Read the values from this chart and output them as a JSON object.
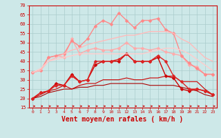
{
  "bg_color": "#cde8e8",
  "grid_color": "#aacccc",
  "xlabel": "Vent moyen/en rafales ( km/h )",
  "xlabel_color": "#cc0000",
  "xlabel_fontsize": 7,
  "xtick_color": "#cc0000",
  "ytick_color": "#cc0000",
  "xlim": [
    -0.5,
    23.5
  ],
  "ylim": [
    15,
    70
  ],
  "yticks": [
    15,
    20,
    25,
    30,
    35,
    40,
    45,
    50,
    55,
    60,
    65,
    70
  ],
  "xticks": [
    0,
    1,
    2,
    3,
    4,
    5,
    6,
    7,
    8,
    9,
    10,
    11,
    12,
    13,
    14,
    15,
    16,
    17,
    18,
    19,
    20,
    21,
    22,
    23
  ],
  "series": [
    {
      "y": [
        20,
        21,
        23,
        24,
        25,
        25,
        26,
        26,
        27,
        27,
        28,
        28,
        28,
        28,
        28,
        27,
        27,
        27,
        27,
        26,
        25,
        24,
        22,
        21
      ],
      "color": "#aa0000",
      "linewidth": 0.8,
      "marker": null,
      "markersize": 0
    },
    {
      "y": [
        20,
        22,
        24,
        25,
        27,
        25,
        27,
        28,
        28,
        30,
        30,
        30,
        31,
        30,
        30,
        31,
        31,
        32,
        32,
        29,
        29,
        29,
        25,
        22
      ],
      "color": "#cc0000",
      "linewidth": 0.8,
      "marker": null,
      "markersize": 0
    },
    {
      "y": [
        20,
        23,
        24,
        28,
        27,
        33,
        29,
        30,
        38,
        40,
        40,
        40,
        44,
        40,
        40,
        40,
        42,
        32,
        31,
        25,
        24,
        25,
        24,
        22
      ],
      "color": "#cc0000",
      "linewidth": 1.0,
      "marker": "D",
      "markersize": 2.5
    },
    {
      "y": [
        20,
        23,
        24,
        27,
        27,
        32,
        29,
        30,
        40,
        40,
        40,
        41,
        44,
        40,
        40,
        40,
        43,
        40,
        32,
        29,
        25,
        25,
        24,
        22
      ],
      "color": "#dd2222",
      "linewidth": 1.0,
      "marker": "D",
      "markersize": 2.5
    },
    {
      "y": [
        34,
        35,
        42,
        43,
        42,
        52,
        44,
        46,
        47,
        46,
        46,
        47,
        50,
        47,
        47,
        46,
        47,
        45,
        44,
        43,
        38,
        37,
        33,
        33
      ],
      "color": "#ffaaaa",
      "linewidth": 1.0,
      "marker": "D",
      "markersize": 2.5
    },
    {
      "y": [
        34,
        35,
        42,
        43,
        44,
        51,
        48,
        52,
        59,
        62,
        60,
        66,
        62,
        58,
        62,
        62,
        63,
        57,
        55,
        43,
        39,
        36,
        33,
        33
      ],
      "color": "#ff8888",
      "linewidth": 1.0,
      "marker": "D",
      "markersize": 2.5
    },
    {
      "y": [
        34,
        35,
        40,
        42,
        44,
        46,
        47,
        49,
        50,
        51,
        52,
        53,
        54,
        54,
        55,
        56,
        56,
        56,
        55,
        52,
        50,
        46,
        42,
        40
      ],
      "color": "#ffbbbb",
      "linewidth": 1.0,
      "marker": null,
      "markersize": 0
    },
    {
      "y": [
        34,
        36,
        40,
        41,
        42,
        43,
        44,
        44,
        44,
        44,
        44,
        44,
        44,
        44,
        44,
        45,
        46,
        47,
        47,
        46,
        44,
        41,
        38,
        35
      ],
      "color": "#ffcccc",
      "linewidth": 1.0,
      "marker": null,
      "markersize": 0
    }
  ],
  "arrow_color": "#cc0000"
}
